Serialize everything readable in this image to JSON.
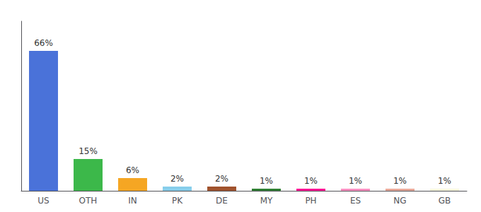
{
  "chart_data": {
    "type": "bar",
    "categories": [
      "US",
      "OTH",
      "IN",
      "PK",
      "DE",
      "MY",
      "PH",
      "ES",
      "NG",
      "GB"
    ],
    "values": [
      66,
      15,
      6,
      2,
      2,
      1,
      1,
      1,
      1,
      1
    ],
    "value_labels": [
      "66%",
      "15%",
      "6%",
      "2%",
      "2%",
      "1%",
      "1%",
      "1%",
      "1%",
      "1%"
    ],
    "colors": [
      "#4a72d9",
      "#3cb84a",
      "#f5a623",
      "#87ceeb",
      "#a0522d",
      "#2e7d32",
      "#ff1493",
      "#ff8fc0",
      "#e8a898",
      "#f5f5dc"
    ],
    "ylim": [
      0,
      80
    ],
    "tick_labels": "x",
    "data_labels": true,
    "grid": false
  }
}
